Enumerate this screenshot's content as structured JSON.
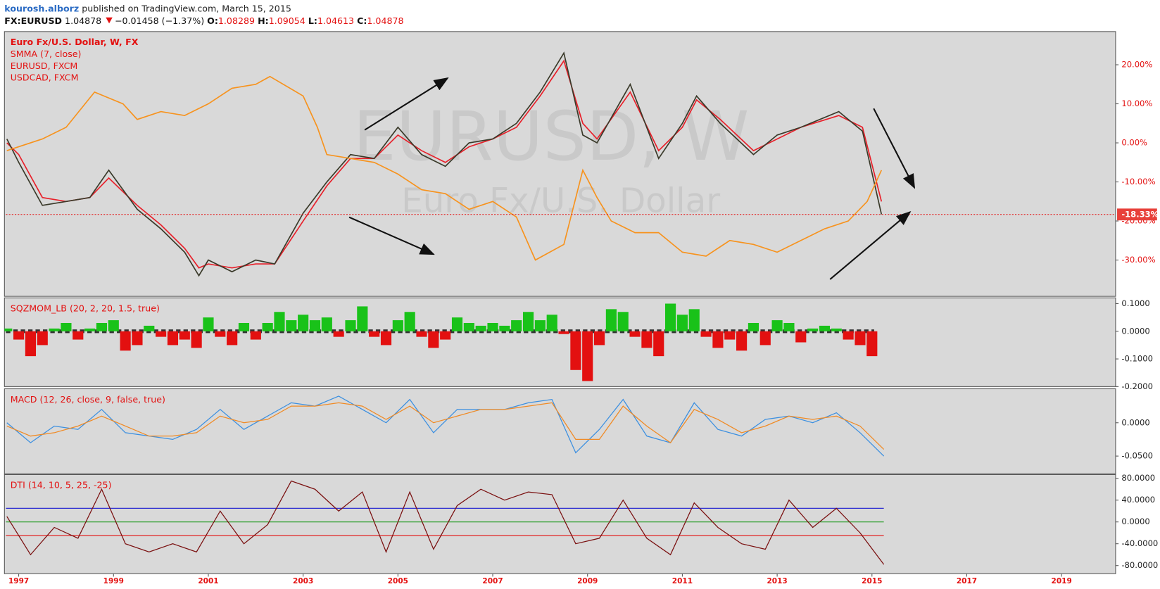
{
  "header": {
    "author": "kourosh.alborz",
    "published": "published on TradingView.com, March 15, 2015",
    "symbol": "FX:EURUSD",
    "last": "1.04878",
    "change": "−0.01458 (−1.37%)",
    "open_label": "O:",
    "open": "1.08289",
    "high_label": "H:",
    "high": "1.09054",
    "low_label": "L:",
    "low": "1.04613",
    "close_label": "C:",
    "close": "1.04878"
  },
  "chart_data": [
    {
      "type": "line",
      "title": "Euro Fx/U.S. Dollar, W, FX",
      "watermark_symbol": "EURUSD, W",
      "watermark_name": "Euro Fx/U.S. Dollar",
      "xlim": [
        1996.73,
        2020.14
      ],
      "ylim": [
        -39.3,
        28.5
      ],
      "yticks": [
        {
          "value": 20,
          "label": "20.00%"
        },
        {
          "value": 10,
          "label": "10.00%"
        },
        {
          "value": 0,
          "label": "0.00%"
        },
        {
          "value": -10,
          "label": "-10.00%"
        },
        {
          "value": -20,
          "label": "-20.00%"
        },
        {
          "value": -30,
          "label": "-30.00%"
        }
      ],
      "last_value": {
        "value": -18.33,
        "label": "-18.33%"
      },
      "series": [
        {
          "name": "SMMA (7, close)",
          "color": "#e8202a",
          "x": [
            1996.75,
            1997,
            1997.5,
            1998,
            1998.5,
            1998.9,
            1999.5,
            2000,
            2000.5,
            2000.8,
            2001,
            2001.5,
            2002,
            2002.4,
            2003,
            2003.5,
            2004,
            2004.5,
            2005,
            2005.5,
            2006,
            2006.5,
            2007,
            2007.5,
            2008,
            2008.5,
            2008.9,
            2009.2,
            2009.9,
            2010.5,
            2011,
            2011.3,
            2011.8,
            2012.5,
            2013,
            2013.5,
            2014.3,
            2014.8,
            2015.2
          ],
          "values": [
            0,
            -3,
            -14,
            -15,
            -14,
            -9,
            -16,
            -21,
            -27,
            -32,
            -31,
            -32,
            -31,
            -31,
            -20,
            -11,
            -4,
            -4,
            2,
            -2,
            -5,
            -1,
            1,
            4,
            12,
            21,
            5,
            1,
            13,
            -2,
            4,
            11,
            6,
            -2,
            1,
            4,
            7,
            4,
            -15
          ]
        },
        {
          "name": "EURUSD, FXCM",
          "color": "#3a3a2a",
          "x": [
            1996.75,
            1997,
            1997.5,
            1998,
            1998.5,
            1998.9,
            1999.5,
            2000,
            2000.5,
            2000.8,
            2001,
            2001.5,
            2002,
            2002.4,
            2003,
            2003.5,
            2004,
            2004.5,
            2005,
            2005.5,
            2006,
            2006.5,
            2007,
            2007.5,
            2008,
            2008.5,
            2008.9,
            2009.2,
            2009.9,
            2010.5,
            2011,
            2011.3,
            2011.8,
            2012.5,
            2013,
            2013.5,
            2014.3,
            2014.8,
            2015.2
          ],
          "values": [
            1,
            -5,
            -16,
            -15,
            -14,
            -7,
            -17,
            -22,
            -28,
            -34,
            -30,
            -33,
            -30,
            -31,
            -18,
            -10,
            -3,
            -4,
            4,
            -3,
            -6,
            0,
            1,
            5,
            13,
            23,
            2,
            0,
            15,
            -4,
            5,
            12,
            5,
            -3,
            2,
            4,
            8,
            3,
            -18.3
          ]
        },
        {
          "name": "USDCAD, FXCM",
          "color": "#f7931e",
          "x": [
            1996.75,
            1997.5,
            1998,
            1998.6,
            1999.2,
            1999.5,
            2000,
            2000.5,
            2001,
            2001.5,
            2002,
            2002.3,
            2003,
            2003.3,
            2003.5,
            2004,
            2004.5,
            2005,
            2005.5,
            2006,
            2006.5,
            2007,
            2007.5,
            2007.9,
            2008.5,
            2008.9,
            2009.2,
            2009.5,
            2010,
            2010.5,
            2011,
            2011.5,
            2012,
            2012.5,
            2013,
            2013.5,
            2014,
            2014.5,
            2014.9,
            2015.2
          ],
          "values": [
            -2,
            1,
            4,
            13,
            10,
            6,
            8,
            7,
            10,
            14,
            15,
            17,
            12,
            4,
            -3,
            -4,
            -5,
            -8,
            -12,
            -13,
            -17,
            -15,
            -19,
            -30,
            -26,
            -7,
            -14,
            -20,
            -23,
            -23,
            -28,
            -29,
            -25,
            -26,
            -28,
            -25,
            -22,
            -20,
            -15,
            -7
          ]
        }
      ]
    },
    {
      "type": "bar",
      "title": "SQZMOM_LB (20, 2, 20, 1.5, true)",
      "xlim": [
        1996.73,
        2020.14
      ],
      "ylim": [
        -0.2,
        0.121
      ],
      "yticks": [
        {
          "value": 0.1,
          "label": "0.1000"
        },
        {
          "value": 0,
          "label": "0.0000"
        },
        {
          "value": -0.1,
          "label": "-0.1000"
        },
        {
          "value": -0.2,
          "label": "-0.2000"
        }
      ],
      "pos_color": "#19c219",
      "neg_color": "#e31010",
      "levels": [
        {
          "value": 0,
          "color": "#333333",
          "width": 5,
          "dash": "6 4"
        }
      ],
      "x": [
        1996.75,
        1997,
        1997.25,
        1997.5,
        1997.75,
        1998,
        1998.25,
        1998.5,
        1998.75,
        1999,
        1999.25,
        1999.5,
        1999.75,
        2000,
        2000.25,
        2000.5,
        2000.75,
        2001,
        2001.25,
        2001.5,
        2001.75,
        2002,
        2002.25,
        2002.5,
        2002.75,
        2003,
        2003.25,
        2003.5,
        2003.75,
        2004,
        2004.25,
        2004.5,
        2004.75,
        2005,
        2005.25,
        2005.5,
        2005.75,
        2006,
        2006.25,
        2006.5,
        2006.75,
        2007,
        2007.25,
        2007.5,
        2007.75,
        2008,
        2008.25,
        2008.5,
        2008.75,
        2009,
        2009.25,
        2009.5,
        2009.75,
        2010,
        2010.25,
        2010.5,
        2010.75,
        2011,
        2011.25,
        2011.5,
        2011.75,
        2012,
        2012.25,
        2012.5,
        2012.75,
        2013,
        2013.25,
        2013.5,
        2013.75,
        2014,
        2014.25,
        2014.5,
        2014.75,
        2015
      ],
      "values": [
        0.01,
        -0.03,
        -0.09,
        -0.05,
        0.01,
        0.03,
        -0.03,
        0.01,
        0.03,
        0.04,
        -0.07,
        -0.05,
        0.02,
        -0.02,
        -0.05,
        -0.03,
        -0.06,
        0.05,
        -0.02,
        -0.05,
        0.03,
        -0.03,
        0.03,
        0.07,
        0.04,
        0.06,
        0.04,
        0.05,
        -0.02,
        0.04,
        0.09,
        -0.02,
        -0.05,
        0.04,
        0.07,
        -0.02,
        -0.06,
        -0.03,
        0.05,
        0.03,
        0.02,
        0.03,
        0.02,
        0.04,
        0.07,
        0.04,
        0.06,
        -0.01,
        -0.14,
        -0.18,
        -0.05,
        0.08,
        0.07,
        -0.02,
        -0.06,
        -0.09,
        0.1,
        0.06,
        0.08,
        -0.02,
        -0.06,
        -0.03,
        -0.07,
        0.03,
        -0.05,
        0.04,
        0.03,
        -0.04,
        0.01,
        0.02,
        0.01,
        -0.03,
        -0.05,
        -0.09
      ]
    },
    {
      "type": "line",
      "title": "MACD (12, 26, close, 9, false, true)",
      "xlim": [
        1996.73,
        2020.14
      ],
      "ylim": [
        -0.0767,
        0.051
      ],
      "yticks": [
        {
          "value": 0,
          "label": "0.0000"
        },
        {
          "value": -0.05,
          "label": "-0.0500"
        }
      ],
      "series": [
        {
          "color": "#3b8fe0",
          "x": [
            1996.75,
            1997.25,
            1997.75,
            1998.25,
            1998.75,
            1999.25,
            1999.75,
            2000.25,
            2000.75,
            2001.25,
            2001.75,
            2002.25,
            2002.75,
            2003.25,
            2003.75,
            2004.25,
            2004.75,
            2005.25,
            2005.75,
            2006.25,
            2006.75,
            2007.25,
            2007.75,
            2008.25,
            2008.75,
            2009.25,
            2009.75,
            2010.25,
            2010.75,
            2011.25,
            2011.75,
            2012.25,
            2012.75,
            2013.25,
            2013.75,
            2014.25,
            2014.75,
            2015.25
          ],
          "values": [
            0,
            -0.03,
            -0.005,
            -0.01,
            0.02,
            -0.015,
            -0.02,
            -0.025,
            -0.01,
            0.02,
            -0.01,
            0.01,
            0.03,
            0.025,
            0.04,
            0.02,
            0,
            0.035,
            -0.015,
            0.02,
            0.02,
            0.02,
            0.03,
            0.035,
            -0.045,
            -0.01,
            0.035,
            -0.02,
            -0.03,
            0.03,
            -0.01,
            -0.02,
            0.005,
            0.01,
            0,
            0.015,
            -0.015,
            -0.05
          ]
        },
        {
          "color": "#f08a24",
          "x": [
            1996.75,
            1997.25,
            1997.75,
            1998.25,
            1998.75,
            1999.25,
            1999.75,
            2000.25,
            2000.75,
            2001.25,
            2001.75,
            2002.25,
            2002.75,
            2003.25,
            2003.75,
            2004.25,
            2004.75,
            2005.25,
            2005.75,
            2006.25,
            2006.75,
            2007.25,
            2007.75,
            2008.25,
            2008.75,
            2009.25,
            2009.75,
            2010.25,
            2010.75,
            2011.25,
            2011.75,
            2012.25,
            2012.75,
            2013.25,
            2013.75,
            2014.25,
            2014.75,
            2015.25
          ],
          "values": [
            -0.005,
            -0.02,
            -0.015,
            -0.005,
            0.01,
            -0.005,
            -0.02,
            -0.02,
            -0.015,
            0.01,
            0,
            0.005,
            0.025,
            0.025,
            0.03,
            0.025,
            0.005,
            0.025,
            0,
            0.01,
            0.02,
            0.02,
            0.025,
            0.03,
            -0.025,
            -0.025,
            0.025,
            -0.005,
            -0.03,
            0.02,
            0.005,
            -0.015,
            -0.005,
            0.01,
            0.005,
            0.01,
            -0.005,
            -0.04
          ]
        }
      ]
    },
    {
      "type": "line",
      "title": "DTI (14, 10, 5, 25, -25)",
      "xlim": [
        1996.73,
        2020.14
      ],
      "ylim": [
        -94.9,
        86.8
      ],
      "yticks": [
        {
          "value": 80,
          "label": "80.0000"
        },
        {
          "value": 40,
          "label": "40.0000"
        },
        {
          "value": 0,
          "label": "0.0000"
        },
        {
          "value": -40,
          "label": "-40.0000"
        },
        {
          "value": -80,
          "label": "-80.0000"
        }
      ],
      "levels": [
        {
          "value": 25,
          "color": "#1a1ad0",
          "width": 1
        },
        {
          "value": 0,
          "color": "#1f9a1f",
          "width": 1
        },
        {
          "value": -25,
          "color": "#e31010",
          "width": 1
        }
      ],
      "series": [
        {
          "color": "#7a1010",
          "x": [
            1996.75,
            1997.25,
            1997.75,
            1998.25,
            1998.75,
            1999.25,
            1999.75,
            2000.25,
            2000.75,
            2001.25,
            2001.75,
            2002.25,
            2002.75,
            2003.25,
            2003.75,
            2004.25,
            2004.75,
            2005.25,
            2005.75,
            2006.25,
            2006.75,
            2007.25,
            2007.75,
            2008.25,
            2008.75,
            2009.25,
            2009.75,
            2010.25,
            2010.75,
            2011.25,
            2011.75,
            2012.25,
            2012.75,
            2013.25,
            2013.75,
            2014.25,
            2014.75,
            2015.25
          ],
          "values": [
            10,
            -60,
            -10,
            -30,
            60,
            -40,
            -55,
            -40,
            -55,
            20,
            -40,
            -5,
            75,
            60,
            20,
            55,
            -55,
            55,
            -50,
            30,
            60,
            40,
            55,
            50,
            -40,
            -30,
            40,
            -30,
            -60,
            35,
            -10,
            -40,
            -50,
            40,
            -10,
            25,
            -20,
            -78
          ]
        }
      ],
      "xticks": [
        1997,
        1999,
        2001,
        2003,
        2005,
        2007,
        2009,
        2011,
        2013,
        2015,
        2017,
        2019
      ]
    }
  ]
}
